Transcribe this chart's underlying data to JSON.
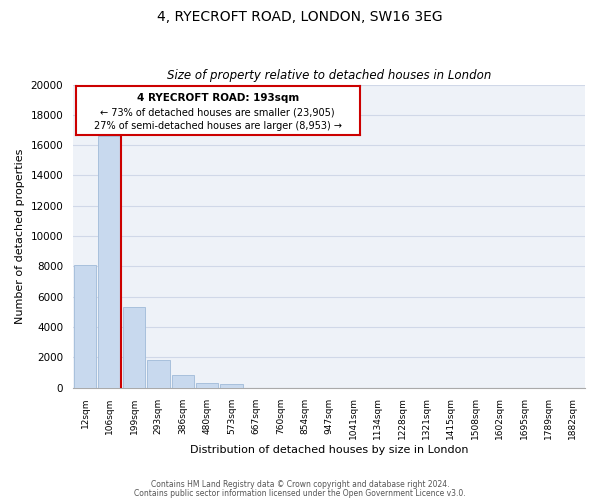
{
  "title": "4, RYECROFT ROAD, LONDON, SW16 3EG",
  "subtitle": "Size of property relative to detached houses in London",
  "xlabel": "Distribution of detached houses by size in London",
  "ylabel": "Number of detached properties",
  "bar_labels": [
    "12sqm",
    "106sqm",
    "199sqm",
    "293sqm",
    "386sqm",
    "480sqm",
    "573sqm",
    "667sqm",
    "760sqm",
    "854sqm",
    "947sqm",
    "1041sqm",
    "1134sqm",
    "1228sqm",
    "1321sqm",
    "1415sqm",
    "1508sqm",
    "1602sqm",
    "1695sqm",
    "1789sqm",
    "1882sqm"
  ],
  "bar_values": [
    8100,
    16600,
    5300,
    1850,
    800,
    300,
    270,
    0,
    0,
    0,
    0,
    0,
    0,
    0,
    0,
    0,
    0,
    0,
    0,
    0,
    0
  ],
  "bar_color": "#c8d9ee",
  "bar_edge_color": "#a8c0dc",
  "property_line_color": "#cc0000",
  "property_line_label": "4 RYECROFT ROAD: 193sqm",
  "annotation_smaller": "← 73% of detached houses are smaller (23,905)",
  "annotation_larger": "27% of semi-detached houses are larger (8,953) →",
  "box_edge_color": "#cc0000",
  "ylim": [
    0,
    20000
  ],
  "yticks": [
    0,
    2000,
    4000,
    6000,
    8000,
    10000,
    12000,
    14000,
    16000,
    18000,
    20000
  ],
  "footer_line1": "Contains HM Land Registry data © Crown copyright and database right 2024.",
  "footer_line2": "Contains public sector information licensed under the Open Government Licence v3.0.",
  "bg_color": "#eef2f8",
  "grid_color": "#d0d8e8"
}
